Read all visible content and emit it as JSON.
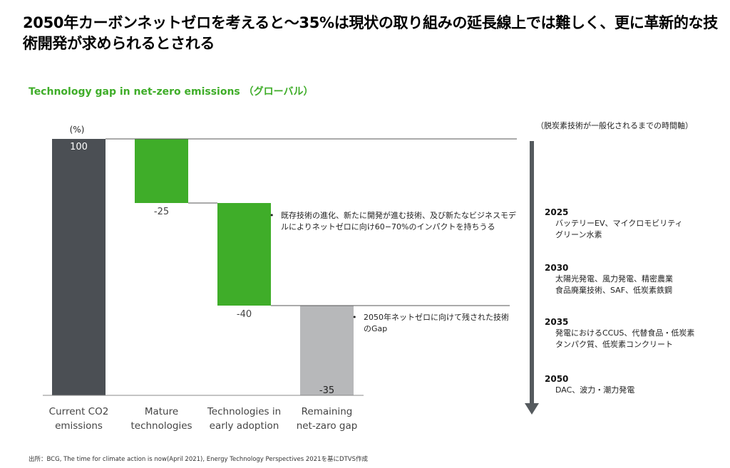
{
  "headline": "2050年カーボンネットゼロを考えると～35%は現状の取り組みの延長線上では難しく、更に革新的な技術開発が求められるとされる",
  "subtitle": "Technology gap in net-zero emissions （グローバル）",
  "chart_data": {
    "type": "bar",
    "variant": "waterfall",
    "unit_label": "(%)",
    "categories": [
      "Current CO2 emissions",
      "Mature technologies",
      "Technologies in early adoption",
      "Remaining net-zaro gap"
    ],
    "category_lines": [
      [
        "Current CO2",
        "emissions"
      ],
      [
        "Mature",
        "technologies"
      ],
      [
        "Technologies in",
        "early adoption"
      ],
      [
        "Remaining",
        "net-zaro gap"
      ]
    ],
    "values": [
      100,
      -25,
      -40,
      -35
    ],
    "value_labels": [
      "100",
      "-25",
      "-40",
      "-35"
    ],
    "colors": [
      "#4b4f54",
      "#3fad29",
      "#3fad29",
      "#b7b8ba"
    ],
    "ylim": [
      0,
      100
    ],
    "grid": false,
    "legend": "none"
  },
  "notes": [
    {
      "text": "既存技術の進化、新たに開発が進む技術、及び新たなビジネスモデルによりネットゼロに向け60−70%のインパクトを持ちうる"
    },
    {
      "text": "2050年ネットゼロに向けて残された技術のGap"
    }
  ],
  "timeline": {
    "caption": "（脱炭素技術が一般化されるまでの時間軸）",
    "arrow_color": "#555a5e",
    "entries": [
      {
        "year": "2025",
        "items": [
          "バッテリーEV、マイクロモビリティ",
          "グリーン水素"
        ]
      },
      {
        "year": "2030",
        "items": [
          "太陽光発電、風力発電、精密農業",
          "食品廃棄技術、SAF、低炭素鉄鋼"
        ]
      },
      {
        "year": "2035",
        "items": [
          "発電におけるCCUS、代替食品・低炭素",
          "タンパク質、低炭素コンクリート"
        ]
      },
      {
        "year": "2050",
        "items": [
          "DAC、波力・潮力発電"
        ]
      }
    ]
  },
  "source": "出所：BCG, The time for climate action is now(April 2021), Energy Technology Perspectives 2021を基にDTVS作成"
}
